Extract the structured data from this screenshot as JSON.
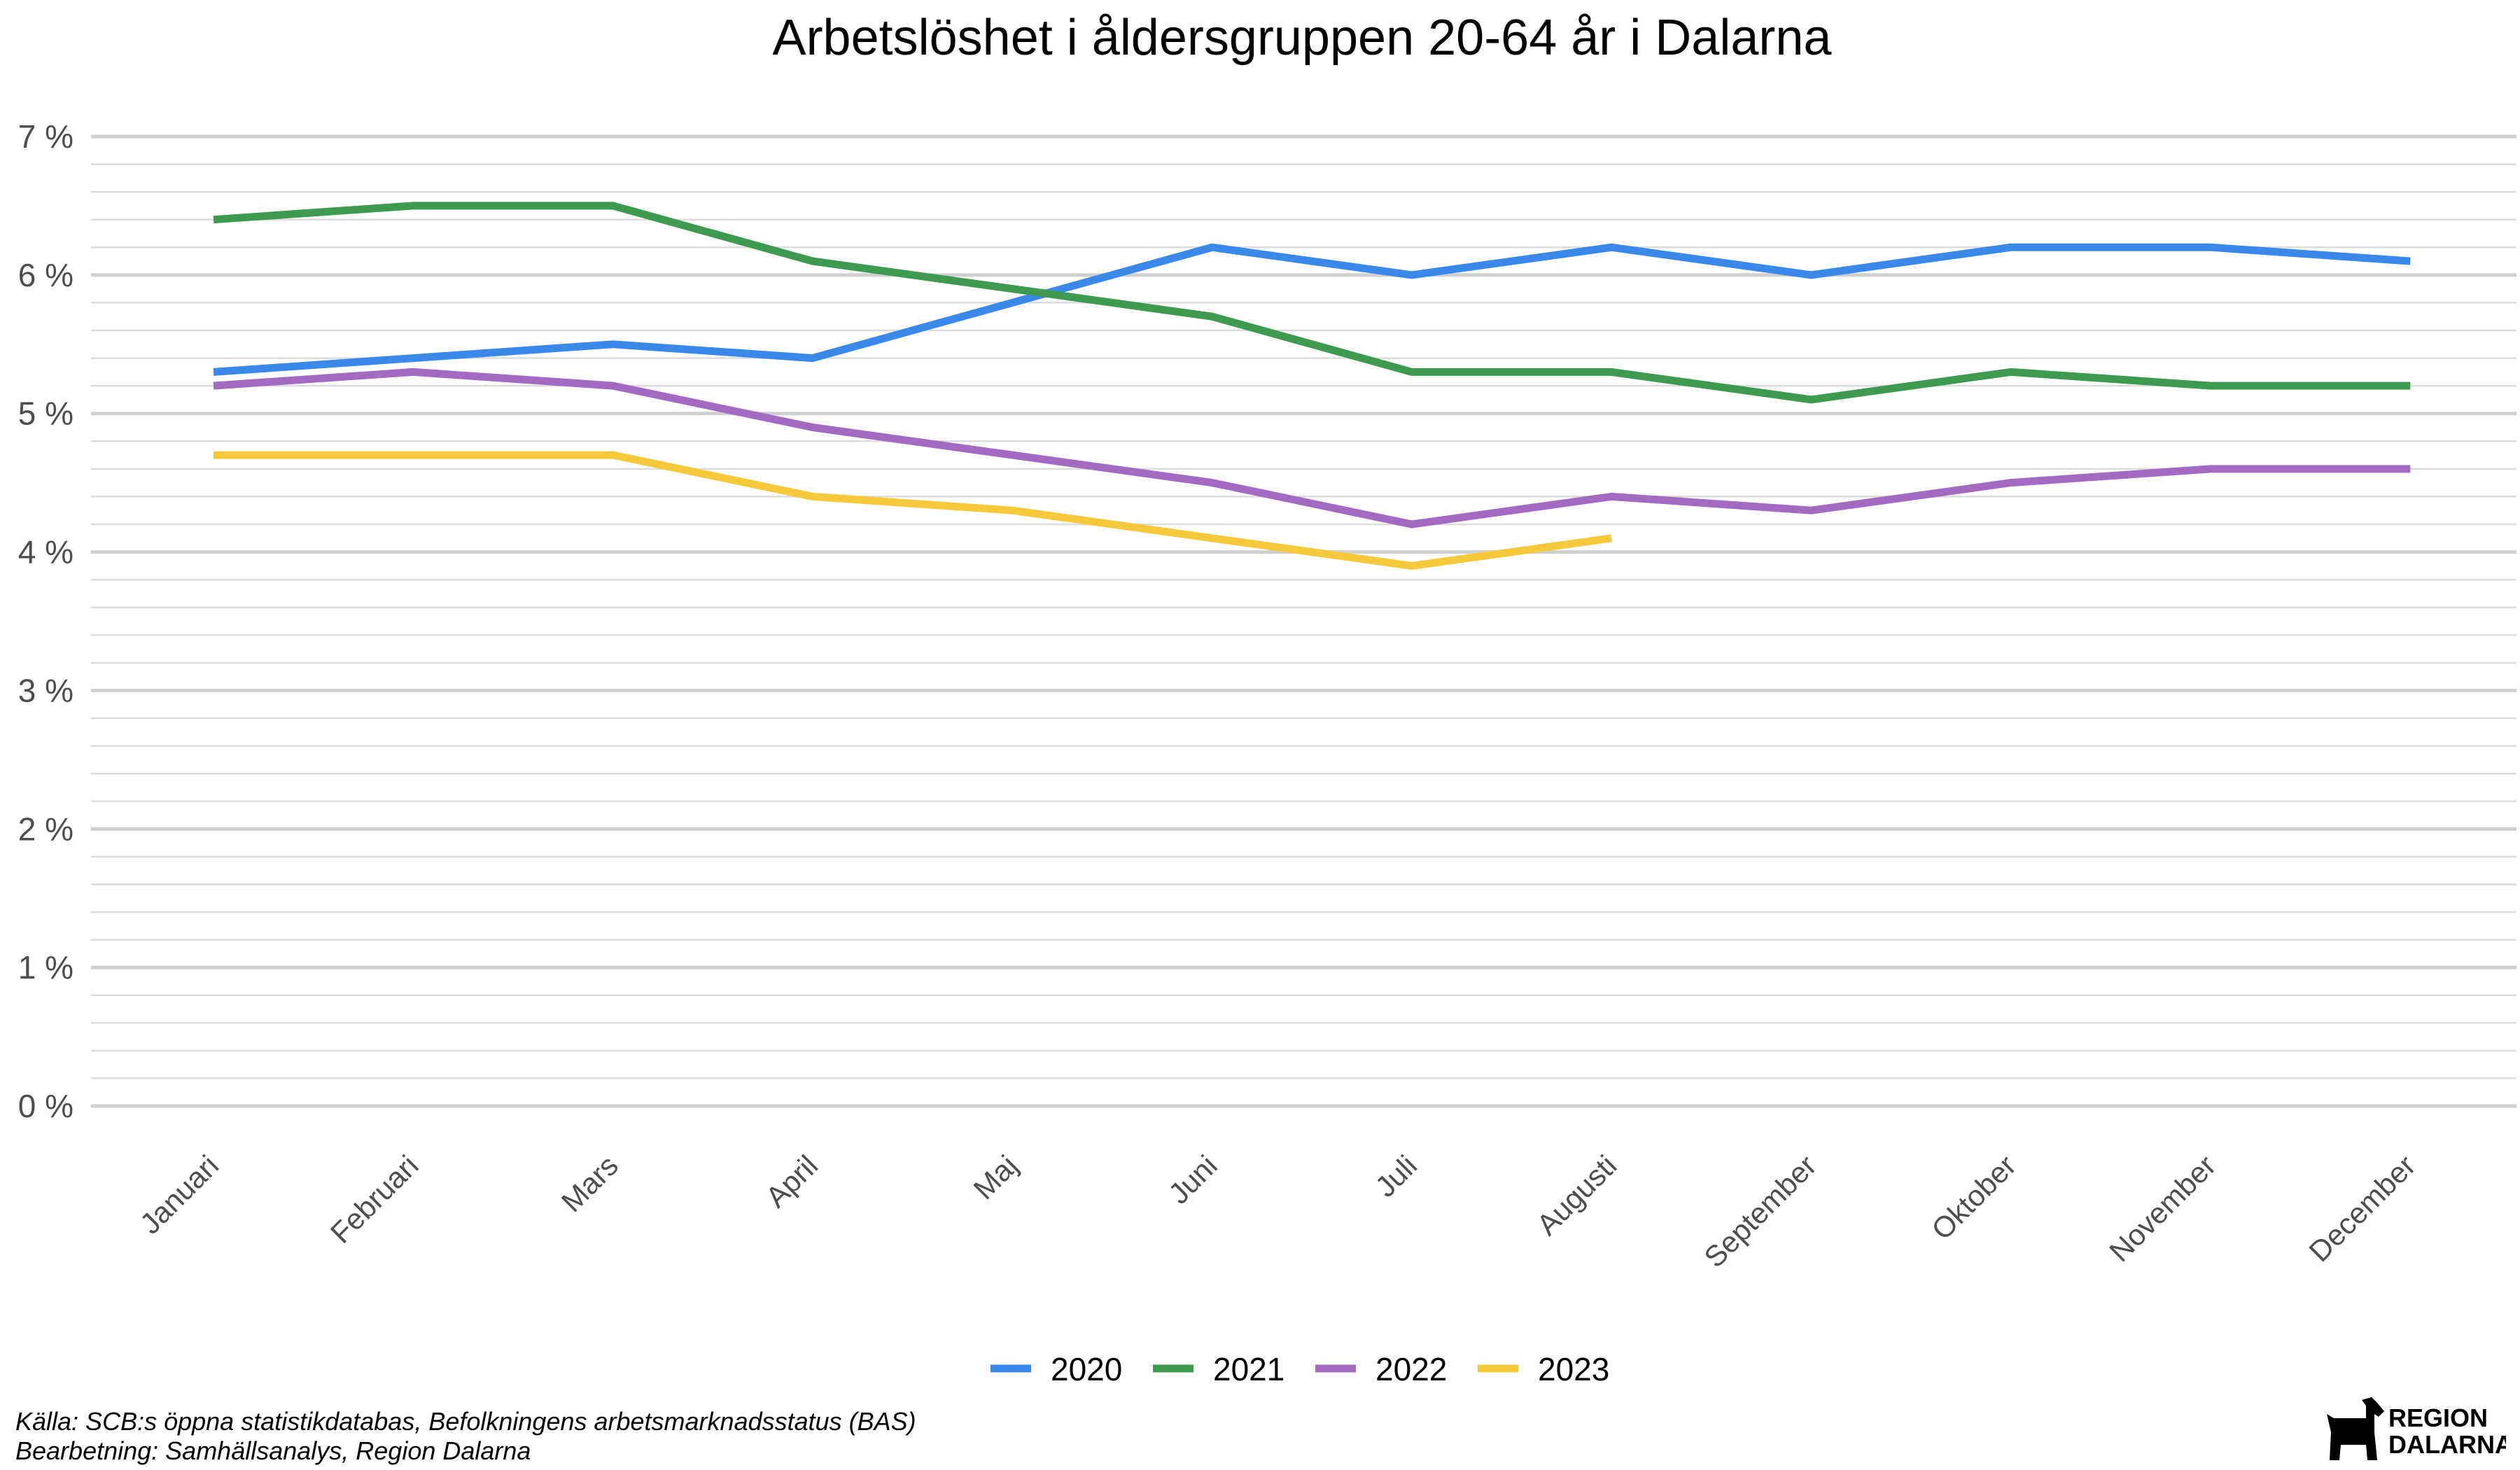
{
  "chart_data": {
    "type": "line",
    "title": "Arbetslöshet i åldersgruppen 20-64 år i Dalarna",
    "categories": [
      "Januari",
      "Februari",
      "Mars",
      "April",
      "Maj",
      "Juni",
      "Juli",
      "Augusti",
      "September",
      "Oktober",
      "November",
      "December"
    ],
    "y_ticks": [
      "0 %",
      "1 %",
      "2 %",
      "3 %",
      "4 %",
      "5 %",
      "6 %",
      "7 %"
    ],
    "ylim": [
      0,
      7
    ],
    "xlabel": "",
    "ylabel": "",
    "legend_position": "bottom",
    "series": [
      {
        "name": "2020",
        "color": "#3a88e8",
        "values": [
          5.3,
          5.4,
          5.5,
          5.4,
          5.8,
          6.2,
          6.0,
          6.2,
          6.0,
          6.2,
          6.2,
          6.1
        ]
      },
      {
        "name": "2021",
        "color": "#3d9a4f",
        "values": [
          6.4,
          6.5,
          6.5,
          6.1,
          5.9,
          5.7,
          5.3,
          5.3,
          5.1,
          5.3,
          5.2,
          5.2
        ]
      },
      {
        "name": "2022",
        "color": "#a469c0",
        "values": [
          5.2,
          5.3,
          5.2,
          4.9,
          4.7,
          4.5,
          4.2,
          4.4,
          4.3,
          4.5,
          4.6,
          4.6
        ]
      },
      {
        "name": "2023",
        "color": "#f5c93b",
        "values": [
          4.7,
          4.7,
          4.7,
          4.4,
          4.3,
          4.1,
          3.9,
          4.1,
          null,
          null,
          null,
          null
        ]
      }
    ]
  },
  "caption": {
    "source": "Källa: SCB:s öppna statistikdatabas, Befolkningens arbetsmarknadsstatus (BAS)",
    "processing": "Bearbetning: Samhällsanalys, Region Dalarna"
  },
  "logo": {
    "line1": "REGION",
    "line2": "DALARNA"
  }
}
